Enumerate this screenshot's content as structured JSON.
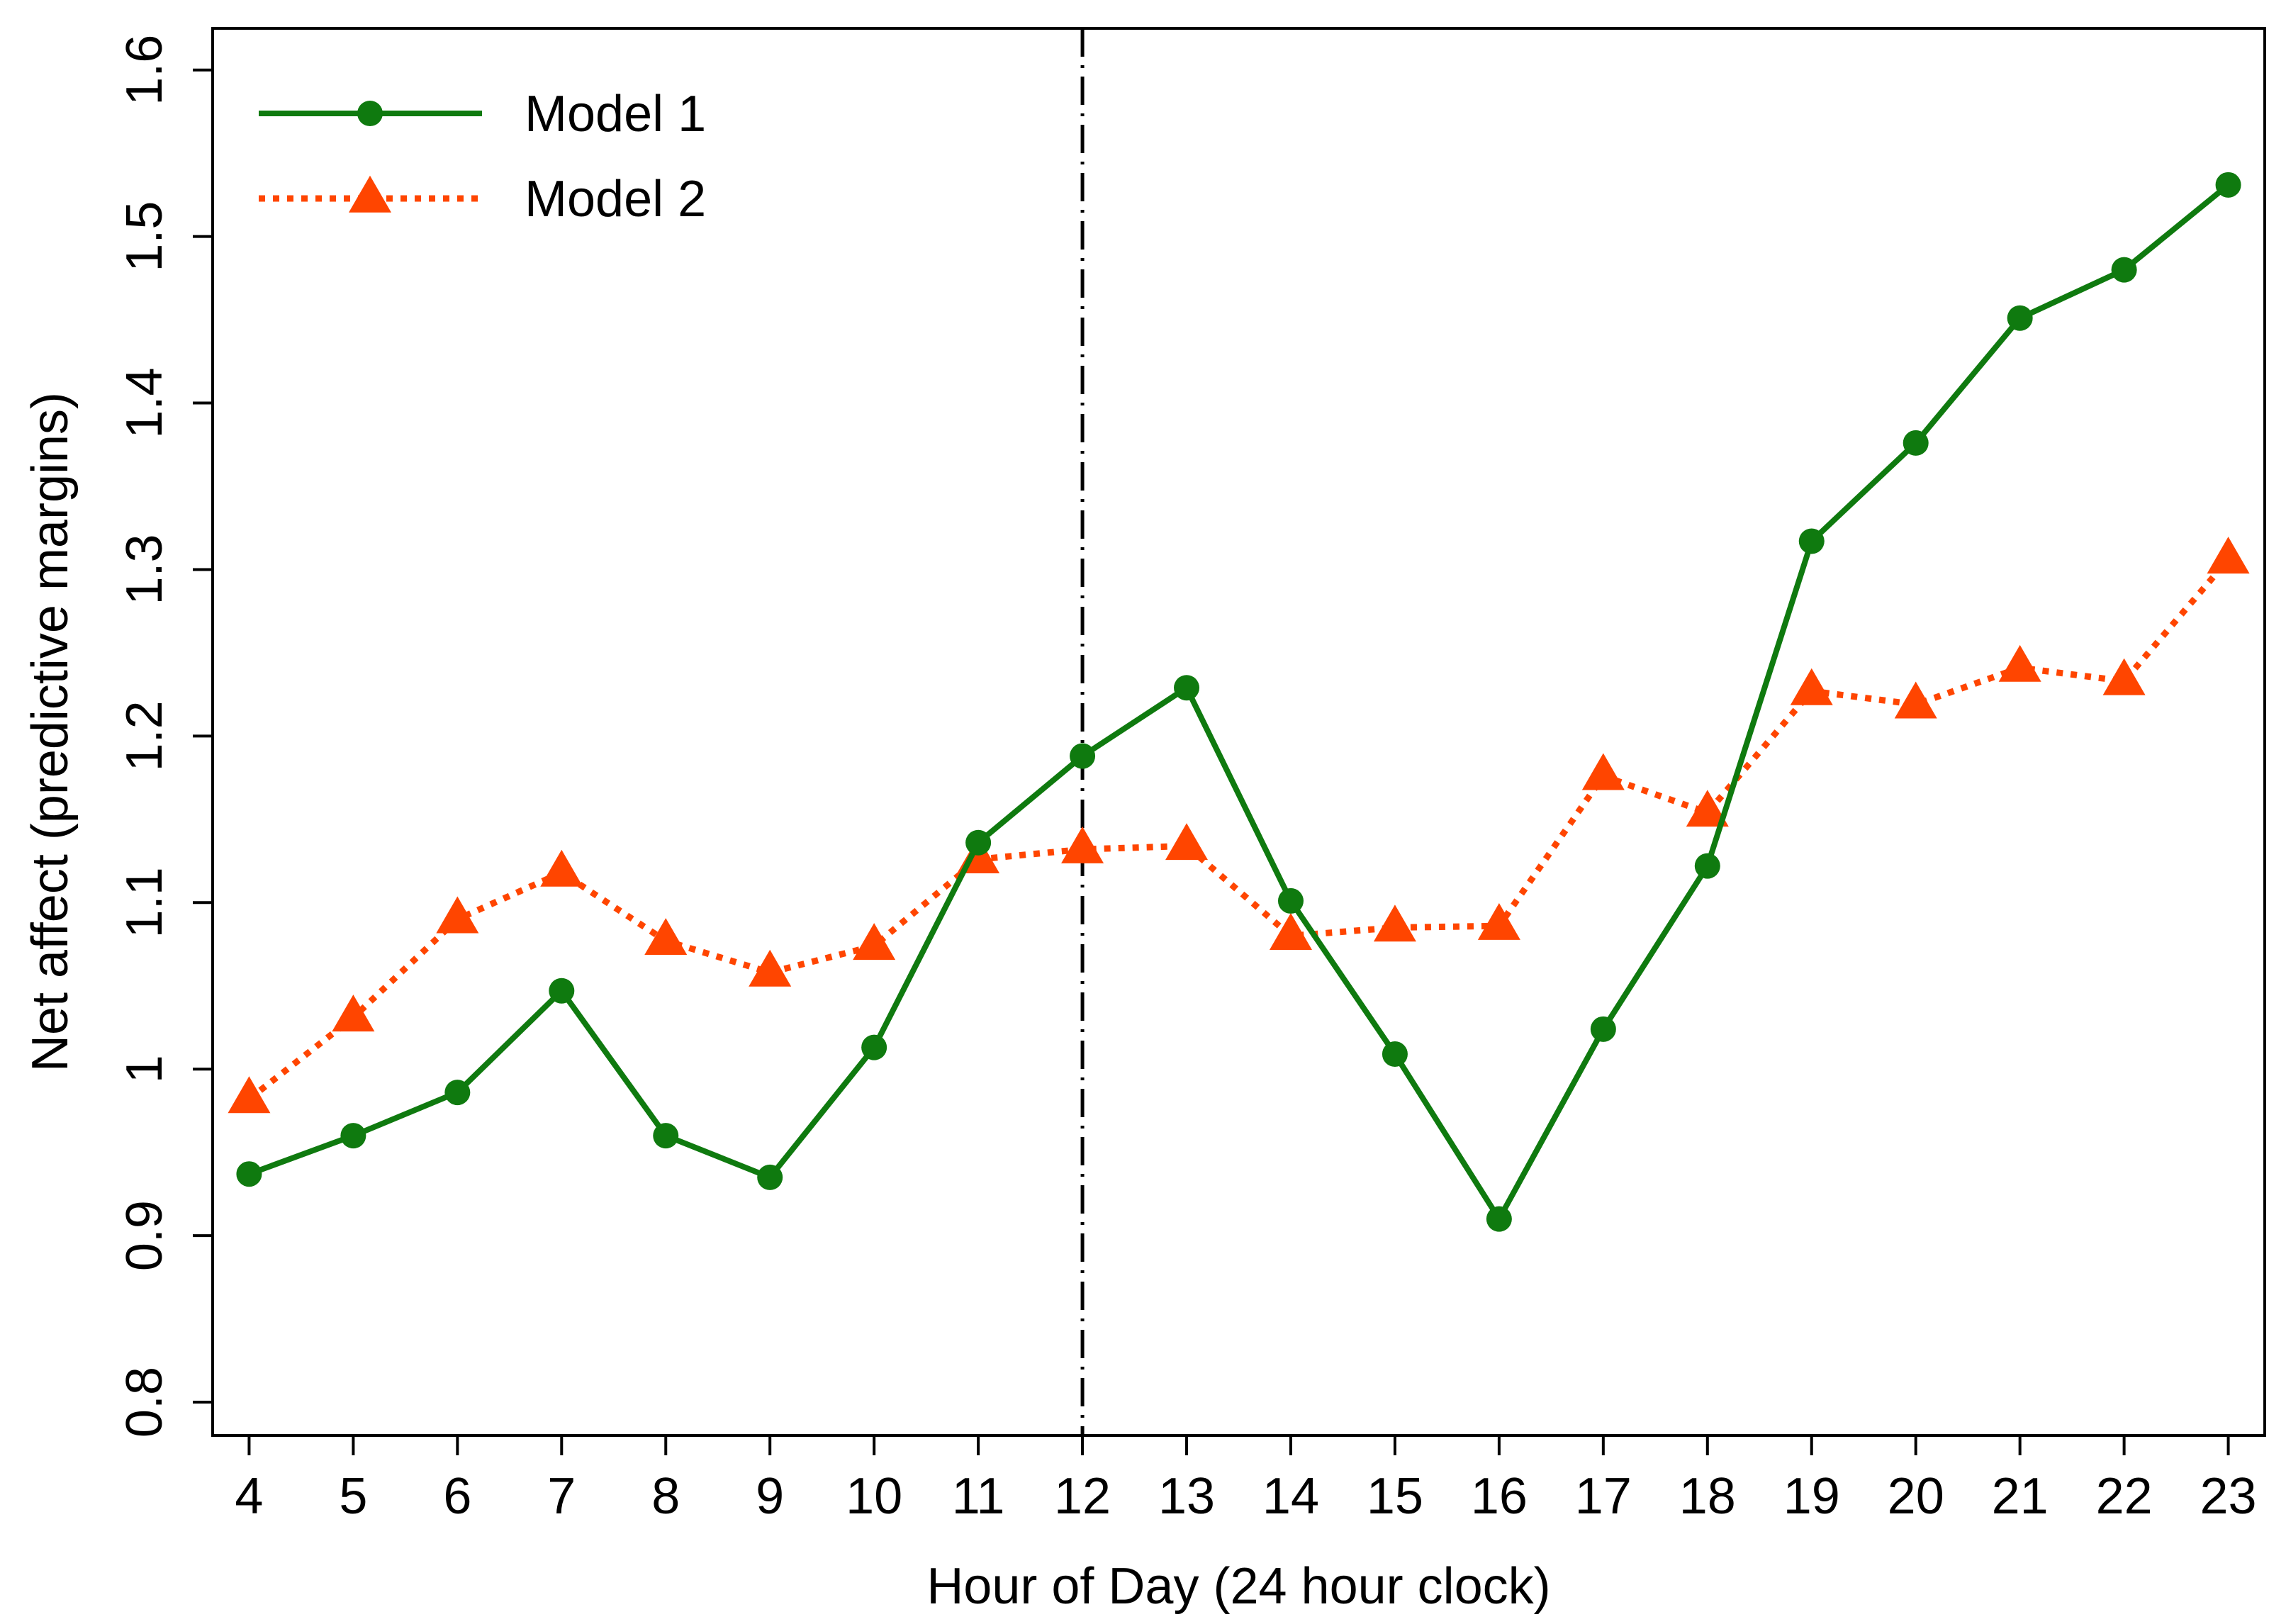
{
  "chart_data": {
    "type": "line",
    "xlabel": "Hour of Day (24 hour clock)",
    "ylabel": "Net affect (predictive margins)",
    "x": [
      4,
      5,
      6,
      7,
      8,
      9,
      10,
      11,
      12,
      13,
      14,
      15,
      16,
      17,
      18,
      19,
      20,
      21,
      22,
      23
    ],
    "xlim": [
      3.65,
      23.35
    ],
    "ylim": [
      0.78,
      1.625
    ],
    "yticks": [
      0.8,
      0.9,
      1,
      1.1,
      1.2,
      1.3,
      1.4,
      1.5,
      1.6
    ],
    "ytick_labels": [
      "0.8",
      "0.9",
      "1",
      "1.1",
      "1.2",
      "1.3",
      "1.4",
      "1.5",
      "1.6"
    ],
    "xticks": [
      4,
      5,
      6,
      7,
      8,
      9,
      10,
      11,
      12,
      13,
      14,
      15,
      16,
      17,
      18,
      19,
      20,
      21,
      22,
      23
    ],
    "xtick_labels": [
      "4",
      "5",
      "6",
      "7",
      "8",
      "9",
      "10",
      "11",
      "12",
      "13",
      "14",
      "15",
      "16",
      "17",
      "18",
      "19",
      "20",
      "21",
      "22",
      "23"
    ],
    "reference_line": {
      "x": 12,
      "style": "dash-dot",
      "color": "#000000"
    },
    "legend_position": "top-left",
    "grid": false,
    "series": [
      {
        "name": "Model 1",
        "color": "#0f7a0f",
        "marker": "circle",
        "line_style": "solid",
        "values": [
          0.937,
          0.96,
          0.986,
          1.047,
          0.96,
          0.935,
          1.013,
          1.136,
          1.188,
          1.229,
          1.101,
          1.009,
          0.91,
          1.024,
          1.122,
          1.317,
          1.376,
          1.451,
          1.48,
          1.531
        ]
      },
      {
        "name": "Model 2",
        "color": "#ff4500",
        "marker": "triangle",
        "line_style": "dotted",
        "values": [
          0.982,
          1.031,
          1.09,
          1.118,
          1.077,
          1.058,
          1.074,
          1.126,
          1.132,
          1.134,
          1.08,
          1.085,
          1.086,
          1.176,
          1.154,
          1.227,
          1.219,
          1.241,
          1.233,
          1.306
        ]
      }
    ]
  }
}
